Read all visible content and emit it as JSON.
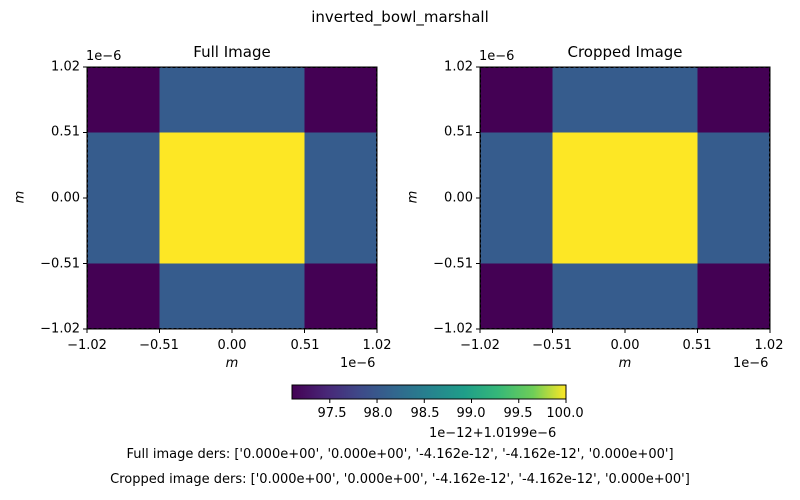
{
  "suptitle": "inverted_bowl_marshall",
  "colors": {
    "low": "#440154",
    "mid": "#365c8d",
    "high": "#fde725"
  },
  "chart_data": [
    {
      "type": "heatmap",
      "title": "Full Image",
      "xlabel": "m",
      "ylabel": "m",
      "x_offset_text": "1e−6",
      "y_offset_text": "1e−6",
      "xlim": [
        -1.02,
        1.02
      ],
      "ylim": [
        -1.02,
        1.02
      ],
      "x_edges": [
        -1.02,
        -0.51,
        0.51,
        1.02
      ],
      "y_edges": [
        -1.02,
        -0.51,
        0.51,
        1.02
      ],
      "x_ticks": [
        "−1.02",
        "−0.51",
        "0.00",
        "0.51",
        "1.02"
      ],
      "y_ticks": [
        "−1.02",
        "−0.51",
        "0.00",
        "0.51",
        "1.02"
      ],
      "cells": [
        [
          "low",
          "mid",
          "low"
        ],
        [
          "mid",
          "high",
          "mid"
        ],
        [
          "low",
          "mid",
          "low"
        ]
      ]
    },
    {
      "type": "heatmap",
      "title": "Cropped Image",
      "xlabel": "m",
      "ylabel": "m",
      "x_offset_text": "1e−6",
      "y_offset_text": "1e−6",
      "xlim": [
        -1.02,
        1.02
      ],
      "ylim": [
        -1.02,
        1.02
      ],
      "x_edges": [
        -1.02,
        -0.51,
        0.51,
        1.02
      ],
      "y_edges": [
        -1.02,
        -0.51,
        0.51,
        1.02
      ],
      "x_ticks": [
        "−1.02",
        "−0.51",
        "0.00",
        "0.51",
        "1.02"
      ],
      "y_ticks": [
        "−1.02",
        "−0.51",
        "0.00",
        "0.51",
        "1.02"
      ],
      "cells": [
        [
          "low",
          "mid",
          "low"
        ],
        [
          "mid",
          "high",
          "mid"
        ],
        [
          "low",
          "mid",
          "low"
        ]
      ]
    }
  ],
  "colorbar": {
    "range": [
      97.1,
      100.0
    ],
    "ticks": [
      "97.5",
      "98.0",
      "98.5",
      "99.0",
      "99.5",
      "100.0"
    ],
    "tick_values": [
      97.5,
      98.0,
      98.5,
      99.0,
      99.5,
      100.0
    ],
    "offset_text": "1e−12+1.0199e−6"
  },
  "ders": {
    "full": "Full image ders: ['0.000e+00', '0.000e+00', '-4.162e-12', '-4.162e-12', '0.000e+00']",
    "cropped": "Cropped image ders: ['0.000e+00', '0.000e+00', '-4.162e-12', '-4.162e-12', '0.000e+00']"
  }
}
